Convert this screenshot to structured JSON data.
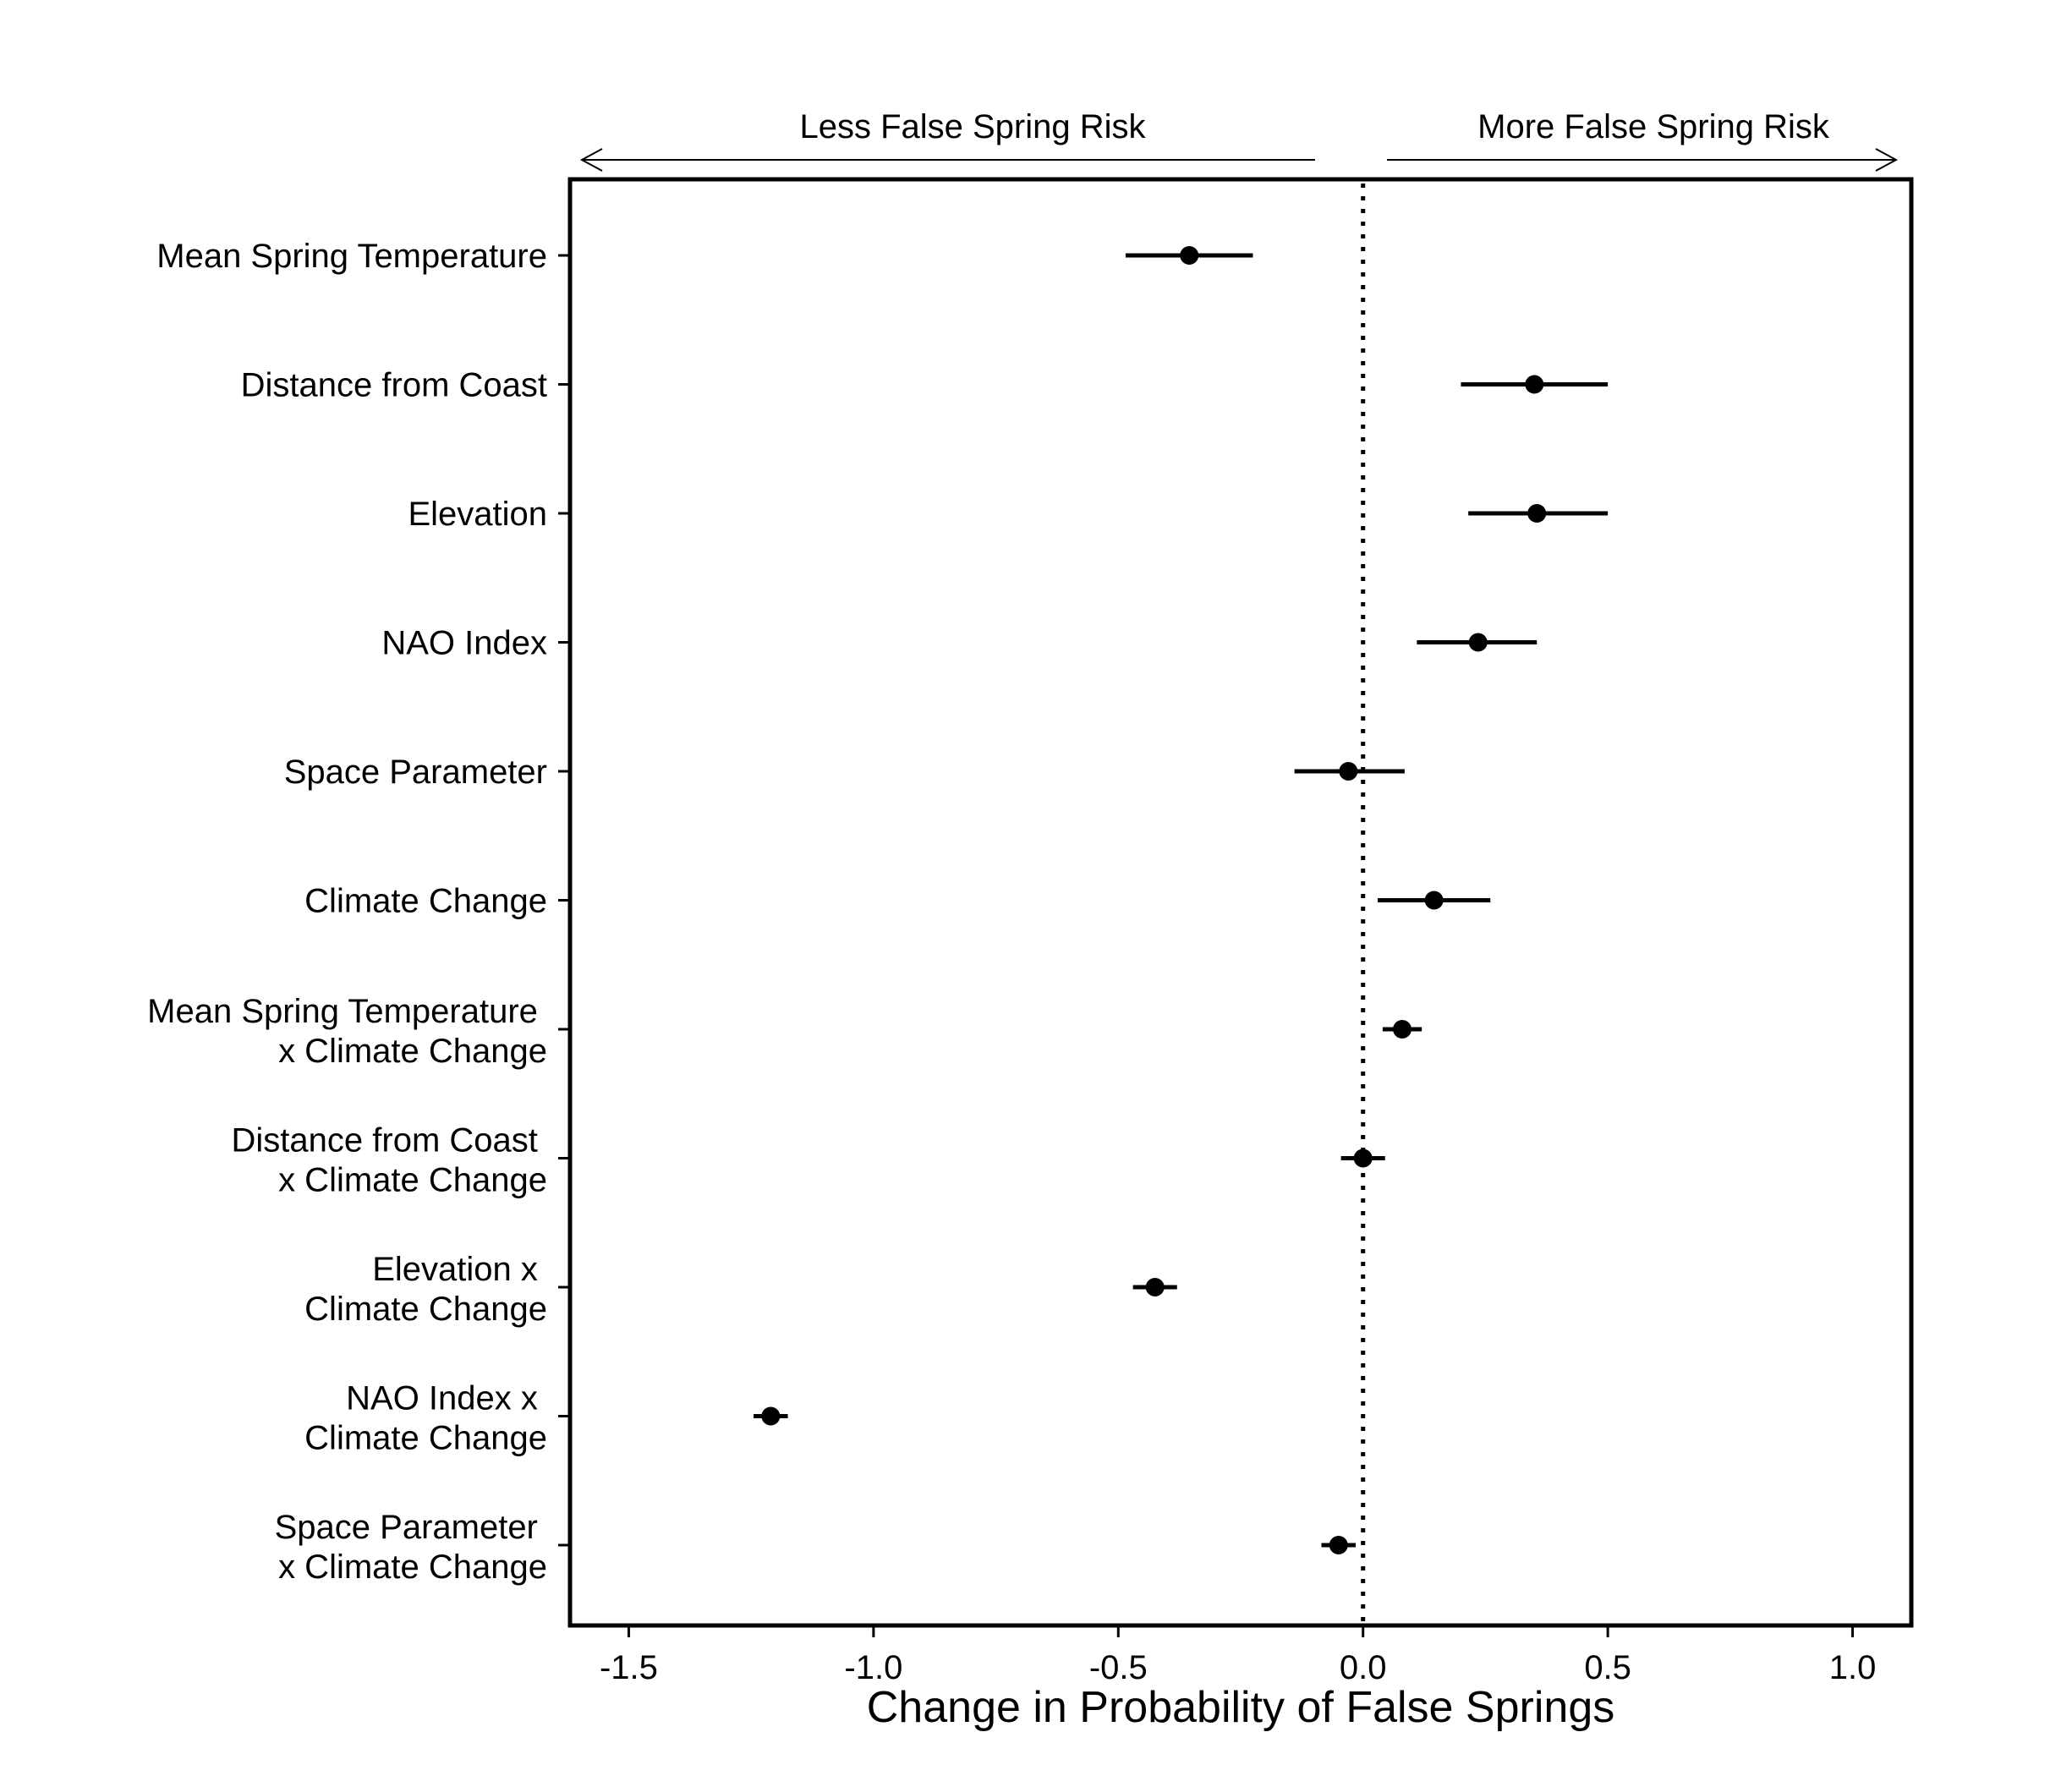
{
  "chart_data": {
    "type": "dot-interval",
    "xlabel": "Change in Probability of False Springs",
    "xlim": [
      -1.62,
      1.12
    ],
    "xticks": [
      -1.5,
      -1.0,
      -0.5,
      0.0,
      0.5,
      1.0
    ],
    "xtick_labels": [
      "-1.5",
      "-1.0",
      "-0.5",
      "0.0",
      "0.5",
      "1.0"
    ],
    "reference_line": 0.0,
    "annotations": {
      "left": "Less False Spring Risk",
      "right": "More False Spring Risk"
    },
    "rows": [
      {
        "label": [
          "Mean Spring Temperature"
        ],
        "estimate": -0.355,
        "low": -0.485,
        "high": -0.225
      },
      {
        "label": [
          "Distance from Coast"
        ],
        "estimate": 0.35,
        "low": 0.2,
        "high": 0.5
      },
      {
        "label": [
          "Elevation"
        ],
        "estimate": 0.355,
        "low": 0.215,
        "high": 0.5
      },
      {
        "label": [
          "NAO Index"
        ],
        "estimate": 0.235,
        "low": 0.11,
        "high": 0.355
      },
      {
        "label": [
          "Space Parameter"
        ],
        "estimate": -0.03,
        "low": -0.14,
        "high": 0.085
      },
      {
        "label": [
          "Climate Change"
        ],
        "estimate": 0.145,
        "low": 0.03,
        "high": 0.26
      },
      {
        "label": [
          "Mean Spring Temperature ",
          "x Climate Change"
        ],
        "estimate": 0.08,
        "low": 0.04,
        "high": 0.12
      },
      {
        "label": [
          "Distance from Coast ",
          "x Climate Change"
        ],
        "estimate": 0.0,
        "low": -0.045,
        "high": 0.045
      },
      {
        "label": [
          "Elevation x ",
          "Climate Change"
        ],
        "estimate": -0.425,
        "low": -0.47,
        "high": -0.38
      },
      {
        "label": [
          "NAO Index x ",
          "Climate Change"
        ],
        "estimate": -1.21,
        "low": -1.245,
        "high": -1.175
      },
      {
        "label": [
          "Space Parameter ",
          "x Climate Change"
        ],
        "estimate": -0.05,
        "low": -0.085,
        "high": -0.015
      }
    ]
  }
}
